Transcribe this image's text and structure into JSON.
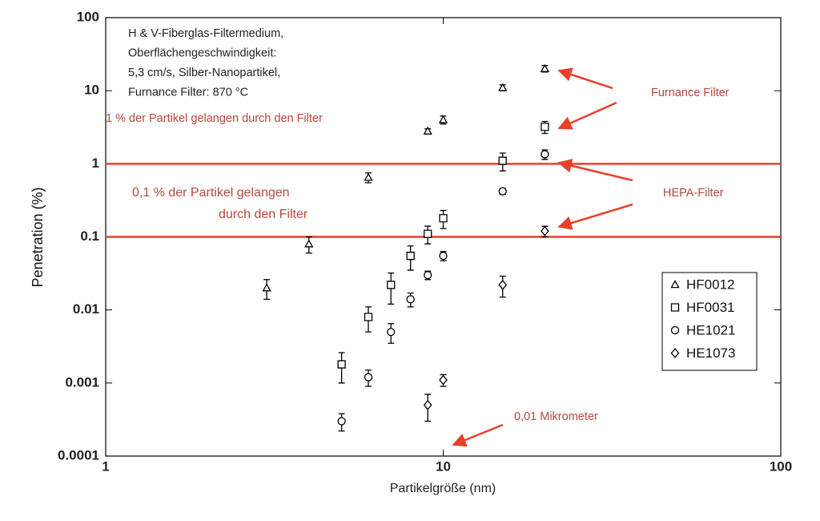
{
  "chart_data": {
    "type": "scatter",
    "x_label": "Partikelgröße (nm)",
    "y_label": "Penetration (%)",
    "log_x": true,
    "log_y": true,
    "xlim": [
      1,
      100
    ],
    "xticks": [
      1,
      10,
      100
    ],
    "ylim": [
      0.0001,
      100
    ],
    "yticks": [
      0.0001,
      0.001,
      0.01,
      0.1,
      1,
      10,
      100
    ],
    "hlines": {
      "values": [
        1,
        0.1
      ],
      "color": "#e8402a"
    },
    "info_box": [
      "H & V-Fiberglas-Filtermedium,",
      "Oberflächengeschwindigkeit:",
      "5,3 cm/s, Silber-Nanopartikel,",
      "Furnance Filter: 870 °C"
    ],
    "annotations": [
      "1 % der Partikel gelangen durch den Filter",
      "0,1 % der Partikel  gelangen",
      "durch den Filter",
      "Furnance Filter",
      "HEPA-Filter",
      "0,01 Mikrometer"
    ],
    "annotation_color": "#b5473a",
    "legend_position": "right",
    "series": [
      {
        "name": "HF0012",
        "marker": "triangle",
        "color": "#000000",
        "x": [
          3,
          4,
          6,
          9,
          10,
          15,
          20
        ],
        "values": [
          0.02,
          0.08,
          0.65,
          2.8,
          4,
          11,
          20
        ],
        "errors": [
          0.006,
          0.02,
          0.1,
          0.2,
          0.5,
          1,
          2
        ]
      },
      {
        "name": "HF0031",
        "marker": "square",
        "color": "#000000",
        "x": [
          5,
          6,
          7,
          8,
          9,
          10,
          15,
          20
        ],
        "values": [
          0.0018,
          0.008,
          0.022,
          0.055,
          0.11,
          0.18,
          1.1,
          3.2
        ],
        "errors": [
          0.0008,
          0.003,
          0.01,
          0.02,
          0.03,
          0.05,
          0.3,
          0.6
        ]
      },
      {
        "name": "HE1021",
        "marker": "circle",
        "color": "#000000",
        "x": [
          5,
          6,
          7,
          8,
          9,
          10,
          15,
          20
        ],
        "values": [
          0.0003,
          0.0012,
          0.005,
          0.014,
          0.03,
          0.055,
          0.42,
          1.35
        ],
        "errors": [
          8e-05,
          0.0003,
          0.0015,
          0.003,
          0.004,
          0.008,
          0.04,
          0.2
        ]
      },
      {
        "name": "HE1073",
        "marker": "diamond",
        "color": "#000000",
        "x": [
          9,
          10,
          15,
          20
        ],
        "values": [
          0.0005,
          0.0011,
          0.022,
          0.12
        ],
        "errors": [
          0.0002,
          0.0002,
          0.007,
          0.02
        ]
      }
    ]
  }
}
